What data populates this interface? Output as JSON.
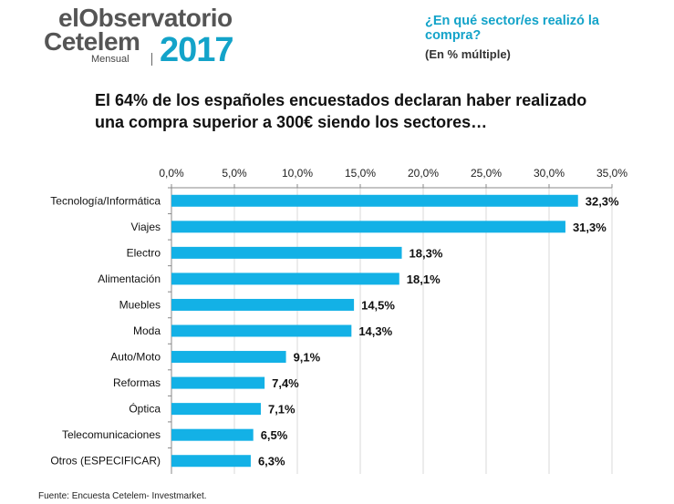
{
  "logo": {
    "line1_a": "el",
    "line1_b": "Observatorio",
    "line2": "Cetelem",
    "line3": "Mensual",
    "year": "2017"
  },
  "question": "¿En qué sector/es realizó la compra?",
  "question_note": "(En % múltiple)",
  "headline": "El 64% de los españoles encuestados declaran haber realizado una compra superior a 300€ siendo los sectores…",
  "source": "Fuente: Encuesta Cetelem- Investmarket.",
  "colors": {
    "bar": "#13b1e6",
    "brand": "#13a3c9",
    "grid": "#d9d9d9"
  },
  "chart_data": {
    "type": "bar",
    "orientation": "horizontal",
    "categories": [
      "Tecnología/Informática",
      "Viajes",
      "Electro",
      "Alimentación",
      "Muebles",
      "Moda",
      "Auto/Moto",
      "Reformas",
      "Óptica",
      "Telecomunicaciones",
      "Otros (ESPECIFICAR)"
    ],
    "values": [
      32.3,
      31.3,
      18.3,
      18.1,
      14.5,
      14.3,
      9.1,
      7.4,
      7.1,
      6.5,
      6.3
    ],
    "value_labels": [
      "32,3%",
      "31,3%",
      "18,3%",
      "18,1%",
      "14,5%",
      "14,3%",
      "9,1%",
      "7,4%",
      "7,1%",
      "6,5%",
      "6,3%"
    ],
    "xlim": [
      0,
      35
    ],
    "ticks": [
      0,
      5,
      10,
      15,
      20,
      25,
      30,
      35
    ],
    "tick_labels": [
      "0,0%",
      "5,0%",
      "10,0%",
      "15,0%",
      "20,0%",
      "25,0%",
      "30,0%",
      "35,0%"
    ],
    "axis_position": "top",
    "grid": true
  }
}
